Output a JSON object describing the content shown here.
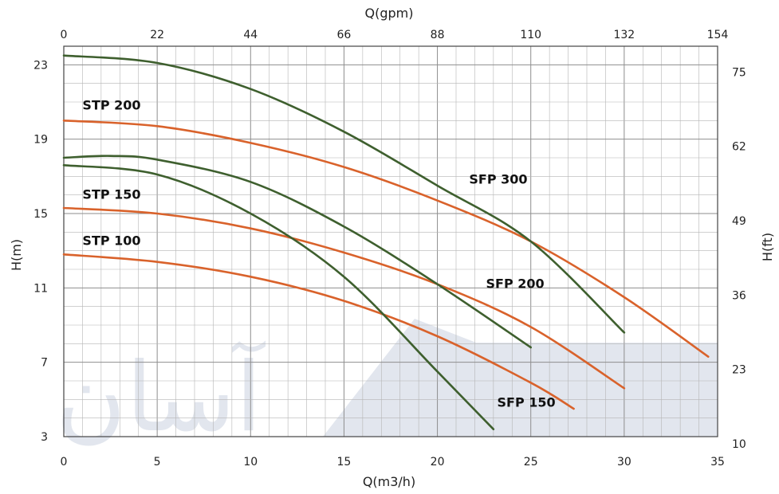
{
  "chart_data": {
    "type": "line",
    "title": "",
    "xlabel": "Q(m3/h)",
    "ylabel": "H(m)",
    "x2label": "Q(gpm)",
    "y2label": "H(ft)",
    "xlim": [
      0,
      35
    ],
    "ylim": [
      3,
      24
    ],
    "xticks": [
      "0",
      "5",
      "10",
      "15",
      "20",
      "25",
      "30",
      "35"
    ],
    "yticks": [
      "3",
      "7",
      "11",
      "15",
      "19",
      "23"
    ],
    "x2ticks": [
      "0",
      "22",
      "44",
      "66",
      "88",
      "110",
      "132",
      "154"
    ],
    "y2ticks": [
      "10",
      "23",
      "36",
      "49",
      "62",
      "75"
    ],
    "watermark": "آسان",
    "grid": true,
    "colors": {
      "STP": "#d9622b",
      "SFP": "#3e5f2e",
      "grid": "#b5b5b5"
    },
    "series": [
      {
        "name": "STP 200",
        "x": [
          0,
          5,
          10,
          15,
          20,
          25,
          30,
          34.5
        ],
        "y": [
          20.0,
          19.7,
          18.8,
          17.5,
          15.7,
          13.5,
          10.5,
          7.3
        ]
      },
      {
        "name": "STP 150",
        "x": [
          0,
          5,
          10,
          15,
          20,
          25,
          30
        ],
        "y": [
          15.3,
          15.0,
          14.2,
          12.9,
          11.2,
          8.9,
          5.6
        ]
      },
      {
        "name": "STP 100",
        "x": [
          0,
          5,
          10,
          15,
          20,
          25,
          27.3
        ],
        "y": [
          12.8,
          12.4,
          11.6,
          10.3,
          8.4,
          5.9,
          4.5
        ]
      },
      {
        "name": "SFP 300",
        "x": [
          0,
          5,
          10,
          15,
          20,
          25,
          30
        ],
        "y": [
          23.5,
          23.1,
          21.7,
          19.4,
          16.5,
          13.5,
          8.6
        ]
      },
      {
        "name": "SFP 200",
        "x": [
          0,
          2.5,
          5,
          10,
          15,
          20,
          25
        ],
        "y": [
          18.0,
          18.1,
          17.9,
          16.7,
          14.3,
          11.2,
          7.8
        ]
      },
      {
        "name": "SFP 150",
        "x": [
          0,
          5,
          10,
          15,
          20,
          23
        ],
        "y": [
          17.6,
          17.1,
          15.0,
          11.6,
          6.5,
          3.4
        ]
      }
    ]
  }
}
